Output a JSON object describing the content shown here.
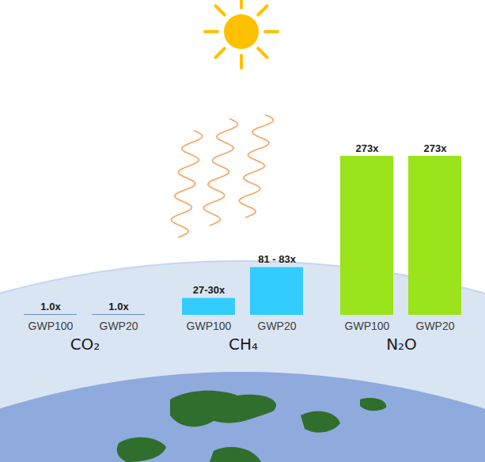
{
  "chart_data": {
    "type": "bar",
    "categories": [
      "CO₂",
      "CH₄",
      "N₂O"
    ],
    "series": [
      {
        "name": "GWP100",
        "values": [
          1,
          29,
          273
        ],
        "value_labels": [
          "1.0x",
          "27-30x",
          "273x"
        ],
        "colors": [
          "#4472c4",
          "#33ccff",
          "#9be31a"
        ]
      },
      {
        "name": "GWP20",
        "values": [
          1,
          82,
          273
        ],
        "value_labels": [
          "1.0x",
          "81 - 83x",
          "273x"
        ],
        "colors": [
          "#4472c4",
          "#33ccff",
          "#9be31a"
        ]
      }
    ],
    "ylim": [
      0,
      273
    ],
    "data_labels": true,
    "tick_labels": "x",
    "grid": false
  }
}
